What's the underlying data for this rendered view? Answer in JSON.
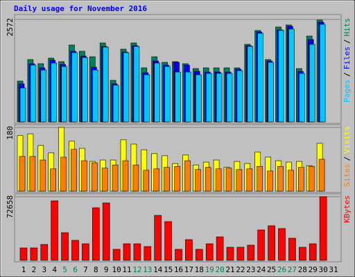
{
  "chart_data": [
    {
      "type": "bar",
      "title": "Daily usage for November 2016",
      "title_color": "#0000ff",
      "ylim": [
        0,
        2572
      ],
      "yticks": [
        2572
      ],
      "legend_separator": "/",
      "series": [
        {
          "name": "Hits",
          "color": "#00805c",
          "values": [
            1025,
            1564,
            1460,
            1599,
            1512,
            1929,
            1773,
            1634,
            1981,
            1043,
            1825,
            1981,
            1356,
            1634,
            1495,
            1512,
            1460,
            1338,
            1356,
            1356,
            1356,
            1356,
            1947,
            2294,
            1564,
            2381,
            2433,
            1338,
            2155,
            2555,
            0
          ]
        },
        {
          "name": "Files",
          "color": "#0000ff",
          "values": [
            956,
            1460,
            1356,
            1547,
            1442,
            1773,
            1651,
            1373,
            1894,
            956,
            1755,
            1912,
            1234,
            1529,
            1425,
            1495,
            1425,
            1269,
            1251,
            1251,
            1251,
            1321,
            1912,
            2259,
            1529,
            2311,
            2398,
            1269,
            2068,
            2502,
            0
          ]
        },
        {
          "name": "Pages",
          "color": "#00c8ff",
          "values": [
            852,
            1425,
            1303,
            1477,
            1390,
            1738,
            1616,
            1303,
            1877,
            921,
            1738,
            1894,
            1182,
            1477,
            1390,
            1251,
            1251,
            1182,
            1217,
            1217,
            1217,
            1286,
            1894,
            2224,
            1495,
            2294,
            2329,
            1217,
            1946,
            2450,
            0
          ]
        }
      ]
    },
    {
      "type": "bar",
      "ylim": [
        0,
        180
      ],
      "yticks": [
        180
      ],
      "legend_separator": "/",
      "series": [
        {
          "name": "Visits",
          "color": "#ffff00",
          "values": [
            157,
            162,
            129,
            108,
            180,
            141,
            121,
            84,
            88,
            88,
            145,
            133,
            117,
            106,
            100,
            78,
            102,
            74,
            82,
            88,
            68,
            84,
            78,
            110,
            96,
            86,
            82,
            84,
            72,
            135,
            0
          ]
        },
        {
          "name": "Sites",
          "color": "#ff8000",
          "values": [
            98,
            98,
            88,
            63,
            96,
            118,
            86,
            80,
            65,
            74,
            86,
            74,
            59,
            63,
            67,
            70,
            86,
            61,
            67,
            63,
            65,
            61,
            63,
            70,
            57,
            70,
            59,
            67,
            70,
            90,
            0
          ]
        }
      ]
    },
    {
      "type": "bar",
      "ylim": [
        0,
        72658
      ],
      "yticks": [
        72658
      ],
      "categories": [
        "1",
        "2",
        "3",
        "4",
        "5",
        "6",
        "7",
        "8",
        "9",
        "10",
        "11",
        "12",
        "13",
        "14",
        "15",
        "16",
        "17",
        "18",
        "19",
        "20",
        "21",
        "22",
        "23",
        "24",
        "25",
        "26",
        "27",
        "28",
        "29",
        "30",
        "31"
      ],
      "category_colors": [
        "#000000",
        "#000000",
        "#000000",
        "#000000",
        "#00805c",
        "#00805c",
        "#000000",
        "#000000",
        "#000000",
        "#000000",
        "#000000",
        "#00805c",
        "#00805c",
        "#000000",
        "#000000",
        "#000000",
        "#000000",
        "#000000",
        "#00805c",
        "#00805c",
        "#000000",
        "#000000",
        "#000000",
        "#000000",
        "#000000",
        "#00805c",
        "#00805c",
        "#000000",
        "#000000",
        "#000000",
        "#000000"
      ],
      "series": [
        {
          "name": "KBytes",
          "color": "#ff0000",
          "values": [
            14216,
            14216,
            18165,
            67923,
            31592,
            22904,
            18955,
            60025,
            65553,
            12637,
            18955,
            18955,
            15796,
            51337,
            44229,
            12637,
            23694,
            12637,
            18955,
            26853,
            15006,
            15006,
            17376,
            34751,
            39490,
            36331,
            25274,
            15006,
            18955,
            72658,
            0
          ]
        }
      ]
    }
  ]
}
